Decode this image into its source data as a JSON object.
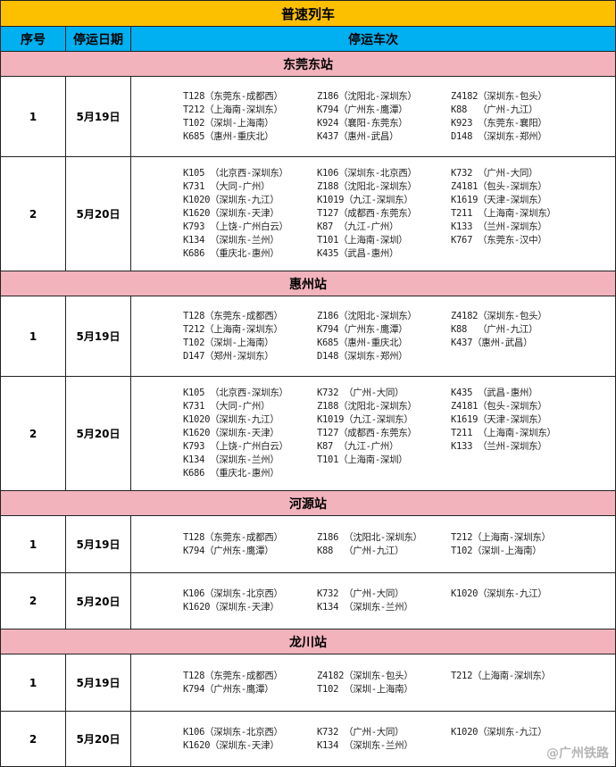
{
  "title": "普速列车",
  "headers": {
    "index": "序号",
    "date": "停运日期",
    "trains": "停运车次"
  },
  "colors": {
    "title_bg": "#fcc000",
    "header_bg": "#00b0f0",
    "station_bg": "#f2b3bc"
  },
  "stations": [
    {
      "name": "东莞东站",
      "rows": [
        {
          "index": "1",
          "date": "5月19日",
          "height": 90,
          "columns": [
            [
              "T128（东莞东-成都西）",
              "T212（上海南-深圳东）",
              "T102（深圳-上海南）",
              "K685（惠州-重庆北）"
            ],
            [
              "Z186（沈阳北-深圳东）",
              "K794（广州东-鹰潭）",
              "K924（襄阳-东莞东）",
              "K437（惠州-武昌）"
            ],
            [
              "Z4182（深圳东-包头）",
              "K88  （广州-九江）",
              "K923 （东莞东-襄阳）",
              "D148 （深圳东-郑州）"
            ]
          ]
        },
        {
          "index": "2",
          "date": "5月20日",
          "height": 128,
          "columns": [
            [
              "K105 （北京西-深圳东）",
              "K731 （大同-广州）",
              "K1020（深圳东-九江）",
              "K1620（深圳东-天津）",
              "K793 （上饶-广州白云）",
              "K134 （深圳东-兰州）",
              "K686 （重庆北-惠州）"
            ],
            [
              "K106（深圳东-北京西）",
              "Z188（沈阳北-深圳东）",
              "K1019（九江-深圳东）",
              "T127（成都西-东莞东）",
              "K87 （九江-广州）",
              "T101（上海南-深圳）",
              "K435（武昌-惠州）"
            ],
            [
              "K732 （广州-大同）",
              "Z4181（包头-深圳东）",
              "K1619（天津-深圳东）",
              "T211 （上海南-深圳东）",
              "K133 （兰州-深圳东）",
              "K767 （东莞东-汉中）"
            ]
          ]
        }
      ]
    },
    {
      "name": "惠州站",
      "rows": [
        {
          "index": "1",
          "date": "5月19日",
          "height": 90,
          "columns": [
            [
              "T128（东莞东-成都西）",
              "T212（上海南-深圳东）",
              "T102（深圳-上海南）",
              "D147（郑州-深圳东）"
            ],
            [
              "Z186（沈阳北-深圳东）",
              "K794（广州东-鹰潭）",
              "K685（惠州-重庆北）",
              "D148（深圳东-郑州）"
            ],
            [
              "Z4182（深圳东-包头）",
              "K88  （广州-九江）",
              "K437（惠州-武昌）"
            ]
          ]
        },
        {
          "index": "2",
          "date": "5月20日",
          "height": 128,
          "columns": [
            [
              "K105 （北京西-深圳东）",
              "K731 （大同-广州）",
              "K1020（深圳东-九江）",
              "K1620（深圳东-天津）",
              "K793 （上饶-广州白云）",
              "K134 （深圳东-兰州）",
              "K686 （重庆北-惠州）"
            ],
            [
              "K732 （广州-大同）",
              "Z188（沈阳北-深圳东）",
              "K1019（九江-深圳东）",
              "T127（成都西-东莞东）",
              "K87 （九江-广州）",
              "T101（上海南-深圳）"
            ],
            [
              "K435 （武昌-惠州）",
              "Z4181（包头-深圳东）",
              "K1619（天津-深圳东）",
              "T211 （上海南-深圳东）",
              "K133 （兰州-深圳东）"
            ]
          ]
        }
      ]
    },
    {
      "name": "河源站",
      "rows": [
        {
          "index": "1",
          "date": "5月19日",
          "height": 64,
          "columns": [
            [
              "T128（东莞东-成都西）",
              "K794（广州东-鹰潭）"
            ],
            [
              "Z186 （沈阳北-深圳东）",
              "K88  （广州-九江）"
            ],
            [
              "T212（上海南-深圳东）",
              "T102（深圳-上海南）"
            ]
          ]
        },
        {
          "index": "2",
          "date": "5月20日",
          "height": 63,
          "columns": [
            [
              "K106（深圳东-北京西）",
              "K1620（深圳东-天津）"
            ],
            [
              "K732 （广州-大同）",
              "K134 （深圳东-兰州）"
            ],
            [
              "K1020（深圳东-九江）"
            ]
          ]
        }
      ]
    },
    {
      "name": "龙川站",
      "rows": [
        {
          "index": "1",
          "date": "5月19日",
          "height": 64,
          "columns": [
            [
              "T128（东莞东-成都西）",
              "K794（广州东-鹰潭）"
            ],
            [
              "Z4182（深圳东-包头）",
              "T102 （深圳-上海南）"
            ],
            [
              "T212（上海南-深圳东）"
            ]
          ]
        },
        {
          "index": "2",
          "date": "5月20日",
          "height": 62,
          "columns": [
            [
              "K106（深圳东-北京西）",
              "K1620（深圳东-天津）"
            ],
            [
              "K732 （广州-大同）",
              "K134 （深圳东-兰州）"
            ],
            [
              "K1020（深圳东-九江）"
            ]
          ]
        }
      ]
    }
  ],
  "watermark": "@广州铁路"
}
